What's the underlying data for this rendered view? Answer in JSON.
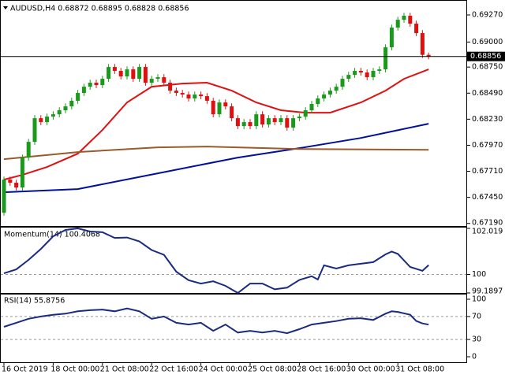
{
  "chart_data": [
    {
      "type": "candlestick",
      "title": "AUDUSD,H4  0.68872 0.68895 0.68828 0.68856",
      "xlim": [
        0,
        75
      ],
      "ylim": [
        0.6718,
        0.6938
      ],
      "yticks": [
        {
          "value": 0.6927,
          "label": "0.69270"
        },
        {
          "value": 0.69,
          "label": "0.69000"
        },
        {
          "value": 0.6875,
          "label": "0.68750"
        },
        {
          "value": 0.6849,
          "label": "0.68490"
        },
        {
          "value": 0.6823,
          "label": "0.68230"
        },
        {
          "value": 0.6797,
          "label": "0.67970"
        },
        {
          "value": 0.6771,
          "label": "0.67710"
        },
        {
          "value": 0.6745,
          "label": "0.67450"
        },
        {
          "value": 0.6719,
          "label": "0.67190"
        }
      ],
      "xticks": [
        {
          "value": 0,
          "label": "16 Oct 2019"
        },
        {
          "value": 8,
          "label": "18 Oct 00:00"
        },
        {
          "value": 16,
          "label": "21 Oct 08:00"
        },
        {
          "value": 24,
          "label": "22 Oct 16:00"
        },
        {
          "value": 32,
          "label": "24 Oct 00:00"
        },
        {
          "value": 40,
          "label": "25 Oct 08:00"
        },
        {
          "value": 48,
          "label": "28 Oct 16:00"
        },
        {
          "value": 56,
          "label": "30 Oct 00:00"
        },
        {
          "value": 64,
          "label": "31 Oct 08:00"
        }
      ],
      "up_color": "#1a9a1a",
      "down_color": "#e01010",
      "open": [
        0.67297,
        0.67627,
        0.67596,
        0.67548,
        0.67847,
        0.68004,
        0.6824,
        0.68201,
        0.68256,
        0.68279,
        0.68319,
        0.68358,
        0.68414,
        0.68492,
        0.68554,
        0.68594,
        0.6857,
        0.68633,
        0.68751,
        0.68712,
        0.68657,
        0.68727,
        0.68633,
        0.68751,
        0.68594,
        0.68633,
        0.68649,
        0.68594,
        0.68515,
        0.68492,
        0.68476,
        0.68437,
        0.68476,
        0.6846,
        0.68414,
        0.68279,
        0.68397,
        0.68358,
        0.6824,
        0.68161,
        0.68201,
        0.68161,
        0.68279,
        0.68177,
        0.6824,
        0.68201,
        0.6824,
        0.68146,
        0.6824,
        0.68256,
        0.68319,
        0.68382,
        0.68437,
        0.68476,
        0.68515,
        0.68554,
        0.68633,
        0.68672,
        0.68712,
        0.68696,
        0.68649,
        0.68712,
        0.68727,
        0.68947,
        0.69144,
        0.69222,
        0.69262,
        0.69183,
        0.69089,
        0.68872
      ],
      "high": [
        0.67657,
        0.67657,
        0.67626,
        0.67877,
        0.68034,
        0.6827,
        0.6827,
        0.68286,
        0.68309,
        0.68349,
        0.68388,
        0.68444,
        0.68522,
        0.68584,
        0.68624,
        0.68624,
        0.68663,
        0.68781,
        0.68781,
        0.68742,
        0.68757,
        0.68757,
        0.68781,
        0.68781,
        0.68663,
        0.68679,
        0.68679,
        0.68624,
        0.68545,
        0.68522,
        0.68506,
        0.68506,
        0.68506,
        0.6849,
        0.68444,
        0.68427,
        0.68427,
        0.68388,
        0.6827,
        0.68231,
        0.68231,
        0.68309,
        0.68309,
        0.6827,
        0.6827,
        0.6827,
        0.6827,
        0.6827,
        0.68286,
        0.68349,
        0.68412,
        0.68467,
        0.68506,
        0.68545,
        0.68584,
        0.68663,
        0.68702,
        0.68742,
        0.68742,
        0.68726,
        0.68742,
        0.68757,
        0.68977,
        0.69174,
        0.69252,
        0.69292,
        0.69292,
        0.69213,
        0.69119,
        0.68895
      ],
      "low": [
        0.67267,
        0.67566,
        0.67518,
        0.67518,
        0.67817,
        0.67974,
        0.68171,
        0.68171,
        0.68226,
        0.68249,
        0.68289,
        0.68328,
        0.68384,
        0.68462,
        0.68524,
        0.6854,
        0.6854,
        0.68603,
        0.68682,
        0.68627,
        0.68627,
        0.68603,
        0.68603,
        0.68564,
        0.68564,
        0.68603,
        0.68564,
        0.68485,
        0.68462,
        0.68446,
        0.68407,
        0.68407,
        0.6843,
        0.68384,
        0.68249,
        0.68249,
        0.68328,
        0.6821,
        0.68131,
        0.68131,
        0.68131,
        0.68131,
        0.68147,
        0.68147,
        0.68171,
        0.68171,
        0.68116,
        0.68116,
        0.6821,
        0.68226,
        0.68289,
        0.68352,
        0.68407,
        0.68446,
        0.68485,
        0.68524,
        0.68603,
        0.68642,
        0.68666,
        0.68619,
        0.68619,
        0.68682,
        0.68697,
        0.68917,
        0.69114,
        0.69192,
        0.69153,
        0.69059,
        0.68842,
        0.68828
      ],
      "close": [
        0.67627,
        0.67596,
        0.67548,
        0.67847,
        0.68004,
        0.6824,
        0.68201,
        0.68256,
        0.68279,
        0.68319,
        0.68358,
        0.68414,
        0.68492,
        0.68554,
        0.68594,
        0.6857,
        0.68633,
        0.68751,
        0.68712,
        0.68657,
        0.68727,
        0.68633,
        0.68751,
        0.68594,
        0.68633,
        0.68649,
        0.68594,
        0.68515,
        0.68492,
        0.68476,
        0.68437,
        0.68476,
        0.6846,
        0.68414,
        0.68279,
        0.68397,
        0.68358,
        0.6824,
        0.68161,
        0.68201,
        0.68161,
        0.68279,
        0.68177,
        0.6824,
        0.68201,
        0.6824,
        0.68146,
        0.6824,
        0.68256,
        0.68319,
        0.68382,
        0.68437,
        0.68476,
        0.68515,
        0.68554,
        0.68633,
        0.68672,
        0.68712,
        0.68696,
        0.68649,
        0.68712,
        0.68727,
        0.68947,
        0.69144,
        0.69222,
        0.69262,
        0.69183,
        0.69089,
        0.68872,
        0.68856
      ],
      "lines": [
        {
          "color": "#e01010",
          "x": [
            0,
            3,
            7,
            12,
            16,
            20,
            24,
            29,
            33,
            37,
            41,
            45,
            49,
            53,
            58,
            62,
            65,
            69
          ],
          "values": [
            0.67627,
            0.67674,
            0.67753,
            0.67886,
            0.68122,
            0.68397,
            0.68554,
            0.68586,
            0.68594,
            0.68515,
            0.68397,
            0.68319,
            0.68295,
            0.68295,
            0.68397,
            0.68515,
            0.68633,
            0.68727
          ]
        },
        {
          "color": "#00109a",
          "x": [
            0,
            12,
            25,
            38,
            48,
            58,
            69
          ],
          "values": [
            0.67501,
            0.67533,
            0.6769,
            0.67847,
            0.67941,
            0.68043,
            0.68185
          ]
        },
        {
          "color": "#9a5a2a",
          "x": [
            0,
            12,
            25,
            33,
            48,
            69
          ],
          "values": [
            0.67831,
            0.67902,
            0.67949,
            0.67957,
            0.67933,
            0.67925
          ]
        }
      ]
    },
    {
      "type": "line",
      "title": "Momentum(14) 100.4068",
      "color": "#1a2a80",
      "xlim": [
        0,
        75
      ],
      "ylim": [
        99.1897,
        102.019
      ],
      "yticks": [
        102.019,
        100,
        99.1897
      ],
      "levels": [
        100
      ],
      "x": [
        0,
        2,
        4,
        6,
        8,
        10,
        12,
        14,
        16,
        18,
        20,
        22,
        24,
        26,
        28,
        30,
        32,
        34,
        36,
        38,
        40,
        42,
        44,
        46,
        48,
        50,
        51,
        52,
        54,
        56,
        58,
        60,
        62,
        63,
        64,
        66,
        68,
        69
      ],
      "values": [
        100.05,
        100.22,
        100.64,
        101.12,
        101.67,
        101.95,
        102.02,
        101.88,
        101.85,
        101.6,
        101.62,
        101.45,
        101.07,
        100.86,
        100.12,
        99.75,
        99.6,
        99.7,
        99.5,
        99.19,
        99.6,
        99.6,
        99.35,
        99.42,
        99.76,
        99.92,
        99.78,
        100.4,
        100.26,
        100.4,
        100.47,
        100.54,
        100.88,
        101.0,
        100.9,
        100.33,
        100.16,
        100.41
      ]
    },
    {
      "type": "line",
      "title": "RSI(14) 55.8756",
      "color": "#1a2a80",
      "xlim": [
        0,
        75
      ],
      "ylim": [
        -9.6,
        109.6
      ],
      "yticks": [
        100,
        70,
        30,
        0
      ],
      "levels": [
        70,
        30
      ],
      "x": [
        0,
        2,
        4,
        6,
        8,
        10,
        12,
        14,
        16,
        18,
        20,
        22,
        24,
        26,
        28,
        30,
        32,
        34,
        36,
        38,
        40,
        42,
        44,
        46,
        48,
        50,
        52,
        54,
        56,
        58,
        60,
        62,
        63,
        64,
        66,
        67,
        68,
        69
      ],
      "values": [
        52,
        59,
        66,
        70,
        73,
        75,
        79,
        81,
        82,
        79,
        84,
        79,
        66,
        70,
        59,
        56,
        59,
        45,
        56,
        42,
        45,
        42,
        45,
        41,
        48,
        56,
        59,
        62,
        66,
        67,
        64,
        75,
        79,
        78,
        73,
        62,
        58,
        55.88
      ]
    }
  ]
}
